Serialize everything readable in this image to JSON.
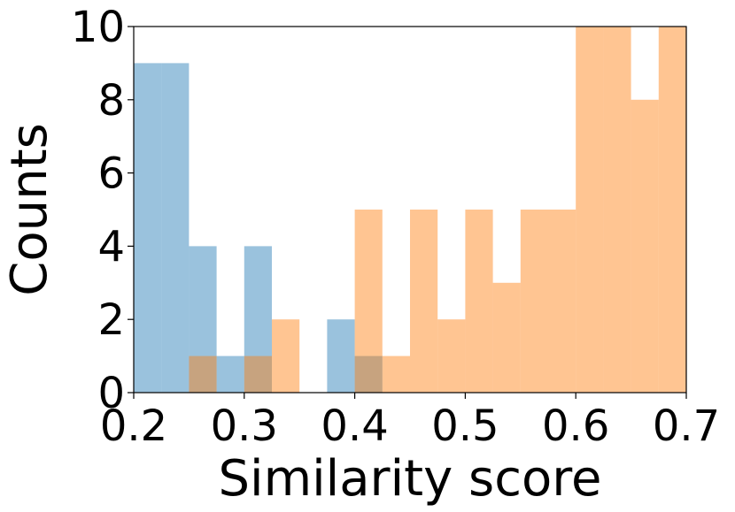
{
  "chart_data": {
    "type": "histogram",
    "x_label": "Similarity score",
    "y_label": "Counts",
    "bins": [
      0.2,
      0.225,
      0.25,
      0.275,
      0.3,
      0.325,
      0.35,
      0.375,
      0.4,
      0.425,
      0.45,
      0.475,
      0.5,
      0.525,
      0.55,
      0.575,
      0.6,
      0.625,
      0.65,
      0.675,
      0.7
    ],
    "series": [
      {
        "color": "#1f77b4",
        "values": [
          9,
          9,
          4,
          1,
          4,
          0,
          0,
          2,
          1,
          0,
          0,
          0,
          0,
          0,
          0,
          0,
          0,
          0,
          0,
          0
        ]
      },
      {
        "color": "#ff7f0e",
        "values": [
          0,
          0,
          1,
          0,
          1,
          2,
          0,
          0,
          5,
          1,
          5,
          2,
          5,
          3,
          5,
          5,
          10,
          10,
          8,
          10
        ]
      }
    ],
    "opacity": 0.45,
    "xlim": [
      0.2,
      0.7
    ],
    "xticks": [
      0.2,
      0.3,
      0.4,
      0.5,
      0.6,
      0.7
    ],
    "ylim": [
      0,
      10
    ],
    "yticks": [
      0,
      2,
      4,
      6,
      8,
      10
    ]
  }
}
